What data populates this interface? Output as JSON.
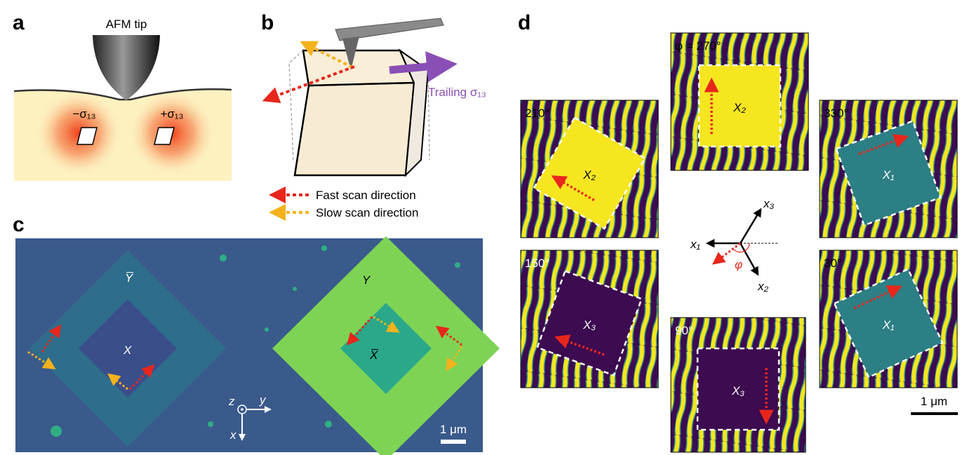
{
  "panels": {
    "a": {
      "label": "a",
      "tip": "AFM tip",
      "neg": "−σ₁₃",
      "pos": "+σ₁₃"
    },
    "b": {
      "label": "b",
      "trailing": "Trailing σ₁₃",
      "fast": "Fast scan direction",
      "slow": "Slow scan direction"
    },
    "c": {
      "label": "c",
      "ybar": "Y̅",
      "y_domain": "Y",
      "x_domain": "X",
      "xbar": "X̅",
      "axis_z": "z",
      "axis_y": "y",
      "axis_x": "x",
      "scale": "1 μm"
    },
    "d": {
      "label": "d",
      "images": [
        {
          "angle": "φ = 270°",
          "domain": "X₂"
        },
        {
          "angle": "210°",
          "domain": "X₂"
        },
        {
          "angle": "330°",
          "domain": "X₁"
        },
        {
          "angle": "150°",
          "domain": "X₃"
        },
        {
          "angle": "30°",
          "domain": "X₁"
        },
        {
          "angle": "90°",
          "domain": "X₃"
        }
      ],
      "axes": {
        "x1": "x₁",
        "x2": "x₂",
        "x3": "x₃",
        "phi": "φ"
      },
      "scale": "1 μm"
    }
  }
}
